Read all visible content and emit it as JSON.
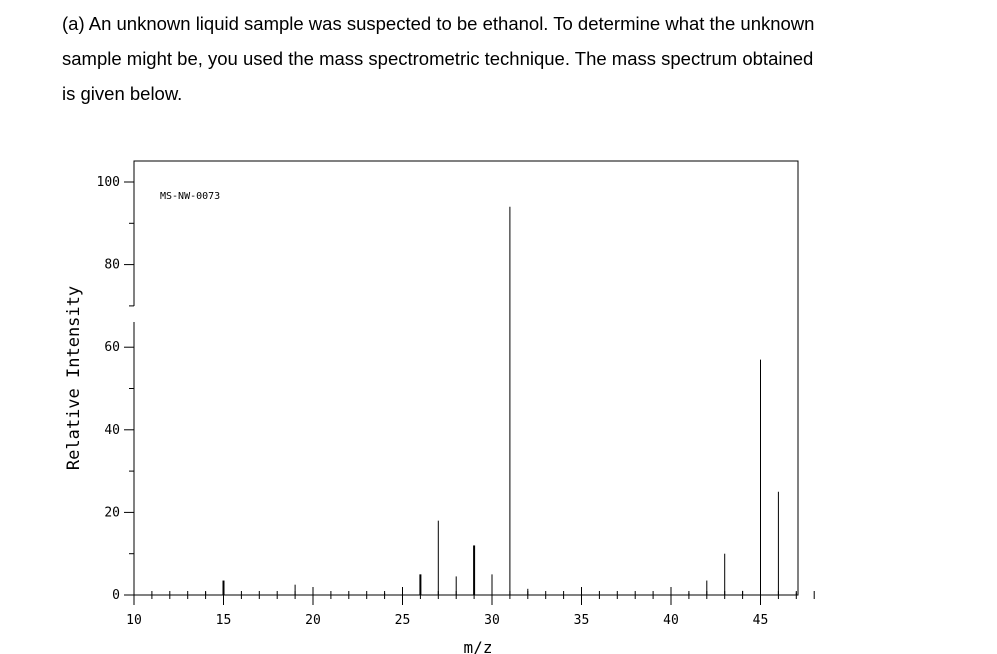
{
  "question": {
    "lines": [
      "(a) An unknown liquid sample was suspected to be ethanol. To determine what the unknown",
      "sample might be, you used the mass spectrometric technique. The mass spectrum obtained",
      "is given below."
    ]
  },
  "chart_data": {
    "type": "bar",
    "annotation": "MS-NW-0073",
    "xlabel": "m/z",
    "ylabel": "Relative Intensity",
    "xlim": [
      10,
      48
    ],
    "ylim": [
      0,
      100
    ],
    "xticks": [
      10,
      15,
      20,
      25,
      30,
      35,
      40,
      45
    ],
    "yticks": [
      0,
      20,
      40,
      60,
      80,
      100
    ],
    "grid": false,
    "peaks": [
      {
        "x": 14,
        "y": 0.8
      },
      {
        "x": 15,
        "y": 3.5
      },
      {
        "x": 19,
        "y": 2.5
      },
      {
        "x": 24,
        "y": 0.5
      },
      {
        "x": 25,
        "y": 0.8
      },
      {
        "x": 26,
        "y": 5
      },
      {
        "x": 27,
        "y": 18
      },
      {
        "x": 28,
        "y": 4.5
      },
      {
        "x": 29,
        "y": 12
      },
      {
        "x": 30,
        "y": 5
      },
      {
        "x": 31,
        "y": 94
      },
      {
        "x": 32,
        "y": 1.5
      },
      {
        "x": 41,
        "y": 0.5
      },
      {
        "x": 42,
        "y": 3.5
      },
      {
        "x": 43,
        "y": 10
      },
      {
        "x": 44,
        "y": 1
      },
      {
        "x": 45,
        "y": 57
      },
      {
        "x": 46,
        "y": 25
      },
      {
        "x": 47,
        "y": 0.6
      }
    ]
  }
}
